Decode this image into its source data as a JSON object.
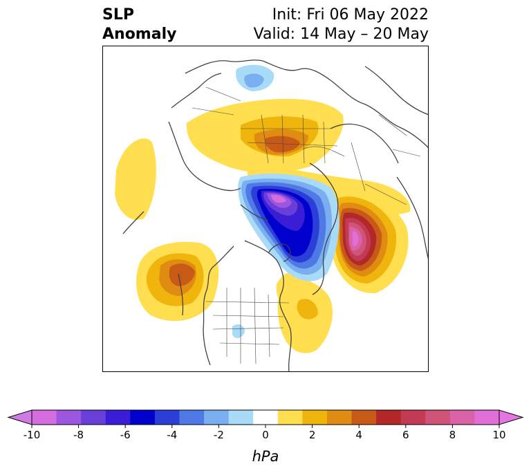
{
  "title": {
    "left_line1": "SLP",
    "left_line2": "Anomaly",
    "right_line1": "Init: Fri 06 May 2022",
    "right_line2": "Valid: 14 May – 20 May"
  },
  "map": {
    "projection": "north-polar stereographic",
    "features": [
      "coastlines",
      "country-borders",
      "state-borders"
    ],
    "anomaly_centers": [
      {
        "name": "low-canadian-arctic",
        "sign": "negative",
        "peak_hpa": -10
      },
      {
        "name": "high-greenland-east",
        "sign": "positive",
        "peak_hpa": 10
      },
      {
        "name": "high-north-pacific",
        "sign": "positive",
        "peak_hpa": 5
      },
      {
        "name": "high-siberia",
        "sign": "positive",
        "peak_hpa": 4
      },
      {
        "name": "high-western-atlantic",
        "sign": "positive",
        "peak_hpa": 3
      },
      {
        "name": "low-east-siberian-sea",
        "sign": "negative",
        "peak_hpa": -2
      }
    ]
  },
  "colorbar": {
    "unit": "hPa",
    "range": [
      -10,
      10
    ],
    "extend": "both",
    "tick_labels": [
      "-10",
      "-8",
      "-6",
      "-4",
      "-2",
      "0",
      "2",
      "4",
      "6",
      "8",
      "10"
    ],
    "colors": [
      "#d56ce0",
      "#9c56e0",
      "#6a3ed8",
      "#3a1ed6",
      "#0000cc",
      "#2b3ed8",
      "#4f7ae6",
      "#79aef0",
      "#a9daf8",
      "#ffffff",
      "#ffdf4f",
      "#f0b50c",
      "#e08b12",
      "#c85a18",
      "#b22828",
      "#c23a54",
      "#cf5478",
      "#d962a8",
      "#e070d8"
    ],
    "under_color": "#d07ae6",
    "over_color": "#e575e0"
  }
}
